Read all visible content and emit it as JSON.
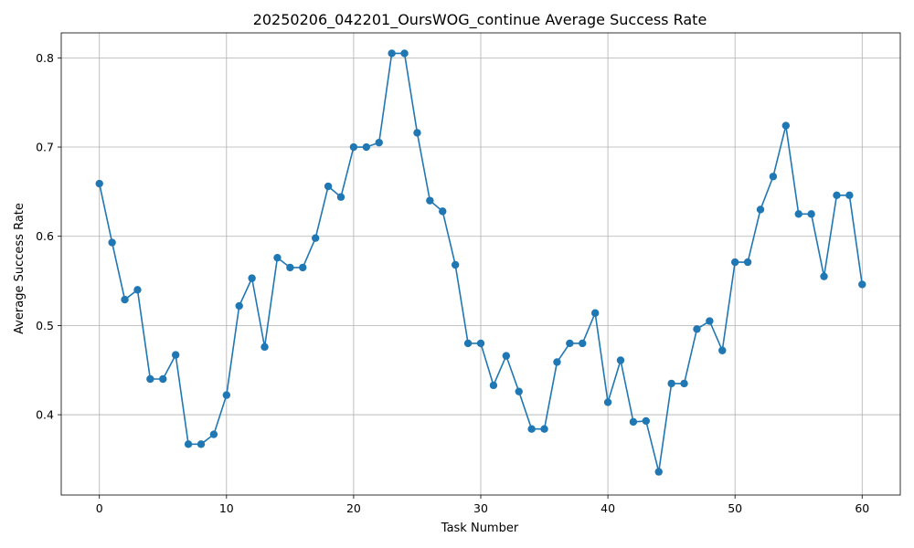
{
  "chart_data": {
    "type": "line",
    "title": "20250206_042201_OursWOG_continue Average Success Rate",
    "xlabel": "Task Number",
    "ylabel": "Average Success Rate",
    "xlim": [
      -3,
      63
    ],
    "ylim": [
      0.31,
      0.828
    ],
    "xticks": [
      0,
      10,
      20,
      30,
      40,
      50,
      60
    ],
    "xtick_labels": [
      "0",
      "10",
      "20",
      "30",
      "40",
      "50",
      "60"
    ],
    "yticks": [
      0.4,
      0.5,
      0.6,
      0.7,
      0.8
    ],
    "ytick_labels": [
      "0.4",
      "0.5",
      "0.6",
      "0.7",
      "0.8"
    ],
    "grid": true,
    "series": [
      {
        "color": "#1f77b4",
        "marker": "circle",
        "x": [
          0,
          1,
          2,
          3,
          4,
          5,
          6,
          7,
          8,
          9,
          10,
          11,
          12,
          13,
          14,
          15,
          16,
          17,
          18,
          19,
          20,
          21,
          22,
          23,
          24,
          25,
          26,
          27,
          28,
          29,
          30,
          31,
          32,
          33,
          34,
          35,
          36,
          37,
          38,
          39,
          40,
          41,
          42,
          43,
          44,
          45,
          46,
          47,
          48,
          49,
          50,
          51,
          52,
          53,
          54,
          55,
          56,
          57,
          58,
          59,
          60
        ],
        "values": [
          0.659,
          0.593,
          0.529,
          0.54,
          0.44,
          0.44,
          0.467,
          0.367,
          0.367,
          0.378,
          0.422,
          0.522,
          0.553,
          0.476,
          0.576,
          0.565,
          0.565,
          0.598,
          0.656,
          0.644,
          0.7,
          0.7,
          0.705,
          0.805,
          0.805,
          0.716,
          0.64,
          0.628,
          0.568,
          0.48,
          0.48,
          0.433,
          0.466,
          0.426,
          0.384,
          0.384,
          0.459,
          0.48,
          0.48,
          0.514,
          0.414,
          0.461,
          0.392,
          0.393,
          0.336,
          0.435,
          0.435,
          0.496,
          0.505,
          0.472,
          0.571,
          0.571,
          0.63,
          0.667,
          0.724,
          0.625,
          0.625,
          0.555,
          0.646,
          0.646,
          0.546
        ]
      }
    ]
  }
}
